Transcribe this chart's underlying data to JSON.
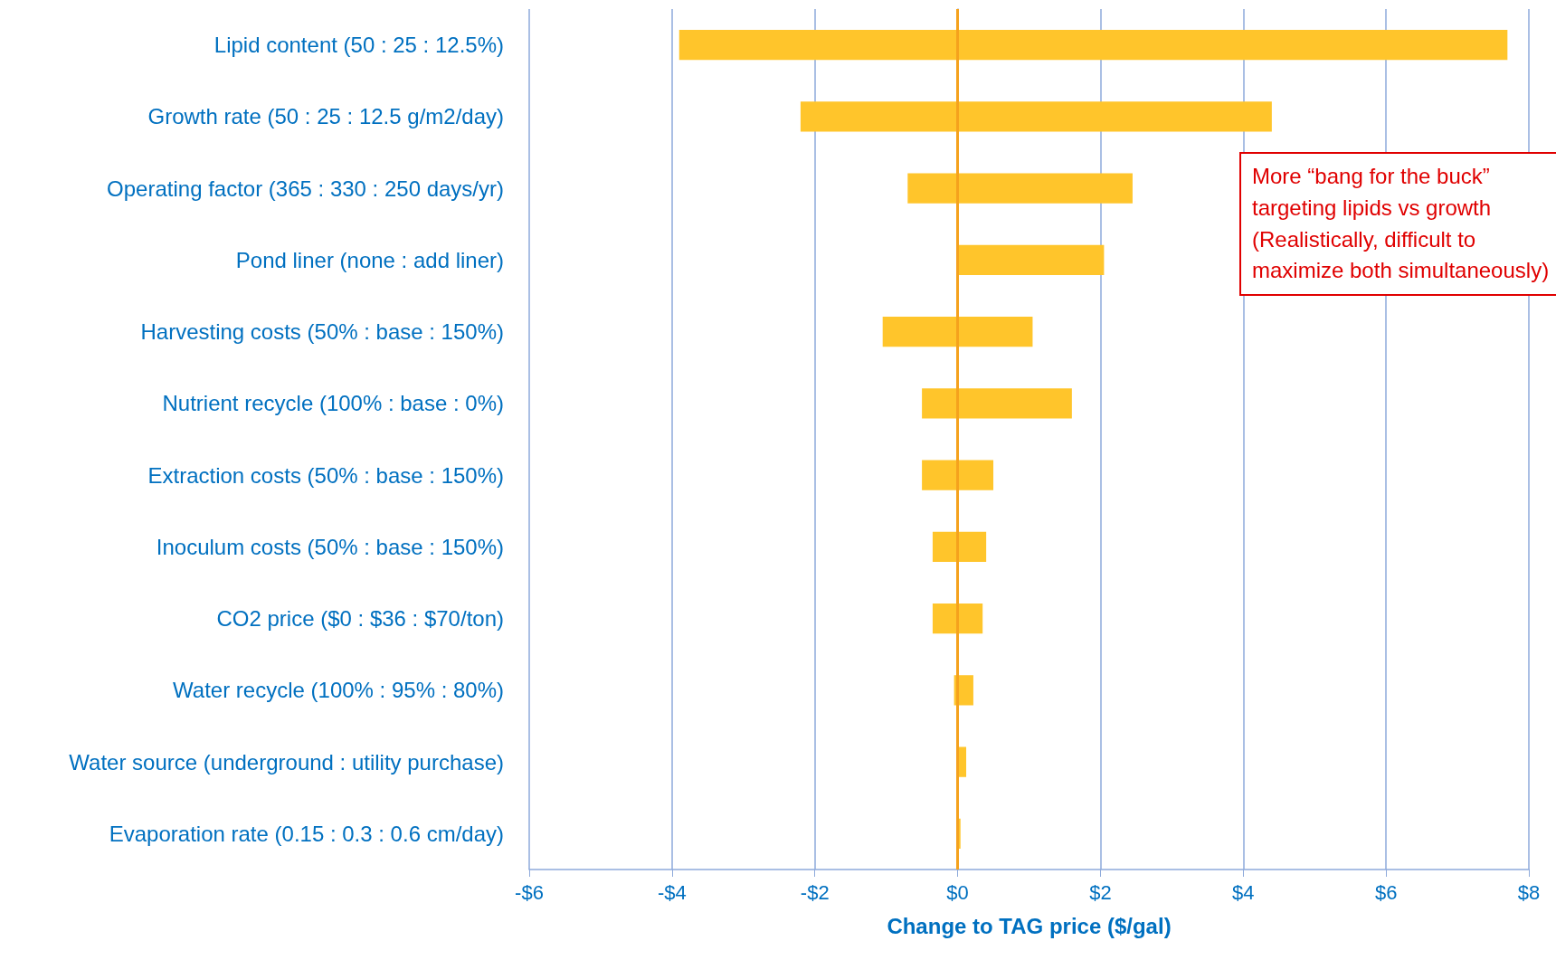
{
  "chart_data": {
    "type": "bar",
    "orientation": "horizontal",
    "xlabel": "Change to TAG price ($/gal)",
    "categories": [
      "Lipid content (50 : 25 : 12.5%)",
      "Growth rate (50 : 25 : 12.5 g/m2/day)",
      "Operating factor (365 : 330 : 250 days/yr)",
      "Pond liner (none : add liner)",
      "Harvesting costs (50% : base : 150%)",
      "Nutrient recycle (100% : base : 0%)",
      "Extraction costs (50% : base : 150%)",
      "Inoculum costs (50% : base : 150%)",
      "CO2 price ($0 : $36 : $70/ton)",
      "Water recycle (100% : 95% : 80%)",
      "Water source (underground : utility purchase)",
      "Evaporation rate (0.15 : 0.3 : 0.6 cm/day)"
    ],
    "base": [
      -3.9,
      -2.2,
      -0.7,
      0,
      -1.05,
      -0.5,
      -0.5,
      -0.35,
      -0.35,
      -0.05,
      0,
      0
    ],
    "values": [
      11.6,
      6.6,
      3.15,
      2.05,
      2.1,
      2.1,
      1.0,
      0.75,
      0.7,
      0.27,
      0.12,
      0.04
    ],
    "color": "#ffc52b",
    "xlim": [
      -6,
      8
    ],
    "xticks": [
      {
        "value": -6,
        "label": "-$6"
      },
      {
        "value": -4,
        "label": "-$4"
      },
      {
        "value": -2,
        "label": "-$2"
      },
      {
        "value": 0,
        "label": "$0"
      },
      {
        "value": 2,
        "label": "$2"
      },
      {
        "value": 4,
        "label": "$4"
      },
      {
        "value": 6,
        "label": "$6"
      },
      {
        "value": 8,
        "label": "$8"
      }
    ],
    "grid": "x",
    "ref_lines": [
      {
        "axis": "x",
        "value": 0,
        "color": "#f5a21d"
      }
    ],
    "annotations": [
      "More “bang for the buck” targeting lipids vs growth (Realistically, difficult to maximize both simultaneously)"
    ]
  }
}
